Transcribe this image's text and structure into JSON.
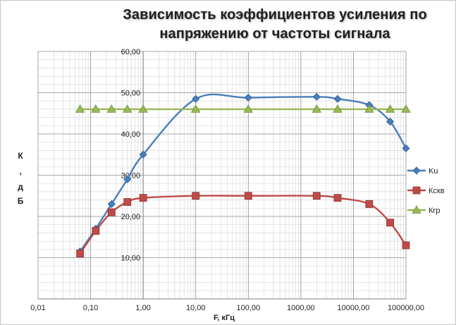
{
  "chart_data": {
    "type": "line",
    "title_line1": "Зависимость коэффициентов усиления по",
    "title_line2": "напряжению от частоты сигнала",
    "xlabel": "F, кГц",
    "ylabel_chars": [
      "К",
      ",",
      "д",
      "Б"
    ],
    "x_scale": "log",
    "xlim": [
      0.01,
      100000
    ],
    "ylim": [
      0,
      60
    ],
    "x_ticks": [
      "0,01",
      "0,10",
      "1,00",
      "10,00",
      "100,00",
      "1000,00",
      "10000,00",
      "100000,00"
    ],
    "y_ticks": [
      "10,00",
      "20,00",
      "30,00",
      "40,00",
      "50,00",
      "60,00"
    ],
    "grid": true,
    "legend_position": "right",
    "series": [
      {
        "name": "Ku",
        "color": "#4a7ebb",
        "marker": "diamond",
        "x": [
          0.063,
          0.125,
          0.25,
          0.5,
          1,
          10,
          100,
          2000,
          5000,
          20000,
          50000,
          100000
        ],
        "y": [
          11.5,
          17,
          23,
          29,
          35,
          48.5,
          48.8,
          49,
          48.5,
          47,
          43,
          36.5
        ]
      },
      {
        "name": "Кскв",
        "color": "#be4b48",
        "marker": "square",
        "x": [
          0.063,
          0.125,
          0.25,
          0.5,
          1,
          10,
          100,
          2000,
          5000,
          20000,
          50000,
          100000
        ],
        "y": [
          11,
          16.5,
          21,
          23.5,
          24.5,
          25,
          25,
          25,
          24.5,
          23,
          18.5,
          13
        ]
      },
      {
        "name": "Кгр",
        "color": "#98b954",
        "marker": "triangle",
        "x": [
          0.063,
          0.125,
          0.25,
          0.5,
          1,
          10,
          100,
          2000,
          5000,
          20000,
          50000,
          100000
        ],
        "y": [
          46,
          46,
          46,
          46,
          46,
          46,
          46,
          46,
          46,
          46,
          46,
          46
        ]
      }
    ]
  }
}
